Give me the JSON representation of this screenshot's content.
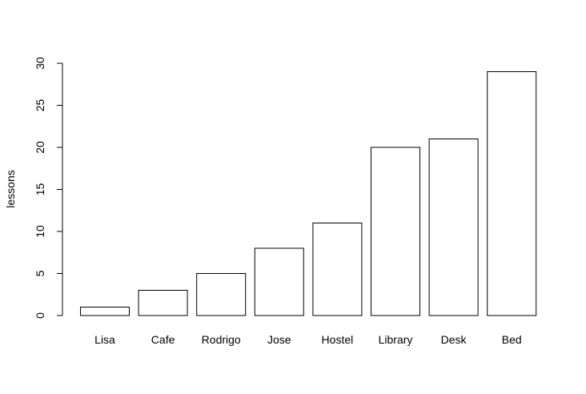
{
  "chart_data": {
    "type": "bar",
    "title": "",
    "xlabel": "",
    "ylabel": "lessons",
    "categories": [
      "Lisa",
      "Cafe",
      "Rodrigo",
      "Jose",
      "Hostel",
      "Library",
      "Desk",
      "Bed"
    ],
    "values": [
      1,
      3,
      5,
      8,
      11,
      20,
      21,
      29
    ],
    "ylim": [
      0,
      30
    ],
    "yticks": [
      0,
      5,
      10,
      15,
      20,
      25,
      30
    ],
    "grid": false,
    "legend": "none",
    "colors": {
      "bar_fill": "#ffffff",
      "bar_stroke": "#000000",
      "axis": "#000000"
    }
  }
}
